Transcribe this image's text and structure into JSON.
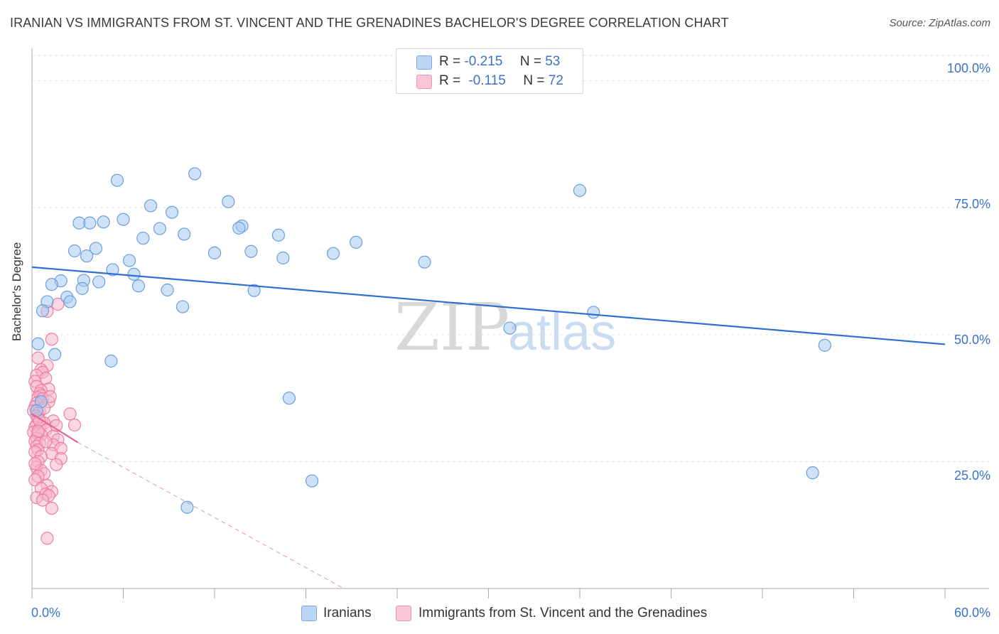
{
  "chart_data": {
    "type": "scatter",
    "title": "IRANIAN VS IMMIGRANTS FROM ST. VINCENT AND THE GRENADINES BACHELOR'S DEGREE CORRELATION CHART",
    "source": "Source: ZipAtlas.com",
    "xlabel": "",
    "ylabel": "Bachelor's Degree",
    "xlim": [
      0,
      60
    ],
    "ylim": [
      0,
      105
    ],
    "x_tick_labels": {
      "min": "0.0%",
      "max": "60.0%"
    },
    "y_tick_labels": [
      "100.0%",
      "75.0%",
      "50.0%",
      "25.0%"
    ],
    "y_tick_values": [
      100,
      75,
      50,
      25
    ],
    "watermark": {
      "zip": "ZIP",
      "atlas": "atlas"
    },
    "legend": {
      "rows": [
        {
          "r_label": "R =",
          "r_value": "-0.215",
          "n_label": "N =",
          "n_value": "53"
        },
        {
          "r_label": "R =",
          "r_value": "-0.115",
          "n_label": "N =",
          "n_value": "72"
        }
      ]
    },
    "series": [
      {
        "name": "Iranians",
        "color": "#a8c8f0",
        "stroke": "#6a9fdc",
        "line_color": "#2f6fd0",
        "trend": {
          "x0": 0,
          "y0": 63.3,
          "x1": 60,
          "y1": 48.1
        },
        "points": [
          [
            10.7,
            81.7
          ],
          [
            5.6,
            80.4
          ],
          [
            36.0,
            78.4
          ],
          [
            12.9,
            76.2
          ],
          [
            7.8,
            75.4
          ],
          [
            9.2,
            74.1
          ],
          [
            6.0,
            72.7
          ],
          [
            4.7,
            72.2
          ],
          [
            3.1,
            72.0
          ],
          [
            3.8,
            72.0
          ],
          [
            13.8,
            71.4
          ],
          [
            13.6,
            71.0
          ],
          [
            8.4,
            70.9
          ],
          [
            10.0,
            69.8
          ],
          [
            16.2,
            69.6
          ],
          [
            7.3,
            69.0
          ],
          [
            21.3,
            68.2
          ],
          [
            4.2,
            67.0
          ],
          [
            2.8,
            66.5
          ],
          [
            12.0,
            66.1
          ],
          [
            14.4,
            66.4
          ],
          [
            19.8,
            66.0
          ],
          [
            3.6,
            65.5
          ],
          [
            16.5,
            65.1
          ],
          [
            6.4,
            64.6
          ],
          [
            25.8,
            64.3
          ],
          [
            5.3,
            62.8
          ],
          [
            6.7,
            61.9
          ],
          [
            3.4,
            60.7
          ],
          [
            4.4,
            60.4
          ],
          [
            1.9,
            60.6
          ],
          [
            1.3,
            59.9
          ],
          [
            3.3,
            59.1
          ],
          [
            7.0,
            59.6
          ],
          [
            8.9,
            58.8
          ],
          [
            14.6,
            58.7
          ],
          [
            2.3,
            57.4
          ],
          [
            2.5,
            56.5
          ],
          [
            1.0,
            56.5
          ],
          [
            9.9,
            55.5
          ],
          [
            0.7,
            54.7
          ],
          [
            36.9,
            54.4
          ],
          [
            31.4,
            51.3
          ],
          [
            0.4,
            48.2
          ],
          [
            52.1,
            47.9
          ],
          [
            1.5,
            46.1
          ],
          [
            5.2,
            44.8
          ],
          [
            16.9,
            37.5
          ],
          [
            0.6,
            36.8
          ],
          [
            51.3,
            22.8
          ],
          [
            18.4,
            21.2
          ],
          [
            10.2,
            16.0
          ],
          [
            0.3,
            35.0
          ]
        ]
      },
      {
        "name": "Immigrants from St. Vincent and the Grenadines",
        "color": "#f6b8cb",
        "stroke": "#ec7fa2",
        "line_color": "#e8638f",
        "trend": {
          "x0": 0,
          "y0": 34.4,
          "x1": 3.0,
          "y1": 28.8
        },
        "trend_ext": {
          "x0": 3.0,
          "y0": 28.8,
          "x1": 20.5,
          "y1": 0
        },
        "points": [
          [
            1.7,
            56.0
          ],
          [
            1.0,
            54.6
          ],
          [
            1.3,
            49.1
          ],
          [
            0.4,
            45.4
          ],
          [
            1.0,
            43.9
          ],
          [
            0.6,
            43.1
          ],
          [
            0.7,
            42.6
          ],
          [
            0.3,
            42.0
          ],
          [
            0.9,
            41.4
          ],
          [
            0.2,
            40.8
          ],
          [
            0.3,
            39.8
          ],
          [
            1.1,
            39.3
          ],
          [
            0.6,
            39.0
          ],
          [
            0.5,
            38.4
          ],
          [
            0.6,
            38.0
          ],
          [
            0.4,
            37.6
          ],
          [
            0.7,
            37.4
          ],
          [
            1.1,
            36.8
          ],
          [
            0.3,
            36.5
          ],
          [
            0.2,
            35.8
          ],
          [
            0.1,
            35.0
          ],
          [
            0.5,
            34.8
          ],
          [
            0.4,
            34.5
          ],
          [
            0.3,
            34.0
          ],
          [
            2.5,
            34.4
          ],
          [
            0.4,
            33.5
          ],
          [
            1.4,
            33.0
          ],
          [
            0.8,
            32.6
          ],
          [
            0.3,
            32.3
          ],
          [
            1.6,
            32.1
          ],
          [
            2.8,
            32.2
          ],
          [
            0.2,
            31.8
          ],
          [
            0.5,
            31.5
          ],
          [
            0.9,
            31.2
          ],
          [
            0.1,
            30.8
          ],
          [
            0.4,
            30.5
          ],
          [
            0.6,
            30.3
          ],
          [
            1.4,
            30.0
          ],
          [
            0.3,
            29.6
          ],
          [
            1.7,
            29.3
          ],
          [
            0.2,
            29.0
          ],
          [
            0.5,
            28.6
          ],
          [
            1.4,
            28.3
          ],
          [
            0.3,
            28.0
          ],
          [
            1.9,
            27.6
          ],
          [
            0.4,
            27.3
          ],
          [
            0.2,
            26.9
          ],
          [
            1.3,
            26.6
          ],
          [
            0.6,
            26.0
          ],
          [
            1.9,
            25.6
          ],
          [
            0.4,
            25.0
          ],
          [
            1.6,
            24.4
          ],
          [
            0.3,
            23.9
          ],
          [
            0.6,
            23.3
          ],
          [
            0.8,
            22.6
          ],
          [
            0.4,
            22.1
          ],
          [
            0.2,
            21.4
          ],
          [
            1.0,
            20.3
          ],
          [
            0.6,
            19.7
          ],
          [
            1.3,
            19.1
          ],
          [
            0.9,
            18.6
          ],
          [
            0.3,
            17.9
          ],
          [
            1.1,
            18.3
          ],
          [
            0.7,
            17.4
          ],
          [
            1.3,
            15.8
          ],
          [
            1.0,
            9.9
          ],
          [
            0.5,
            33.1
          ],
          [
            0.8,
            35.5
          ],
          [
            1.2,
            37.8
          ],
          [
            0.2,
            24.6
          ],
          [
            0.9,
            28.9
          ],
          [
            0.4,
            31.0
          ]
        ]
      }
    ]
  }
}
